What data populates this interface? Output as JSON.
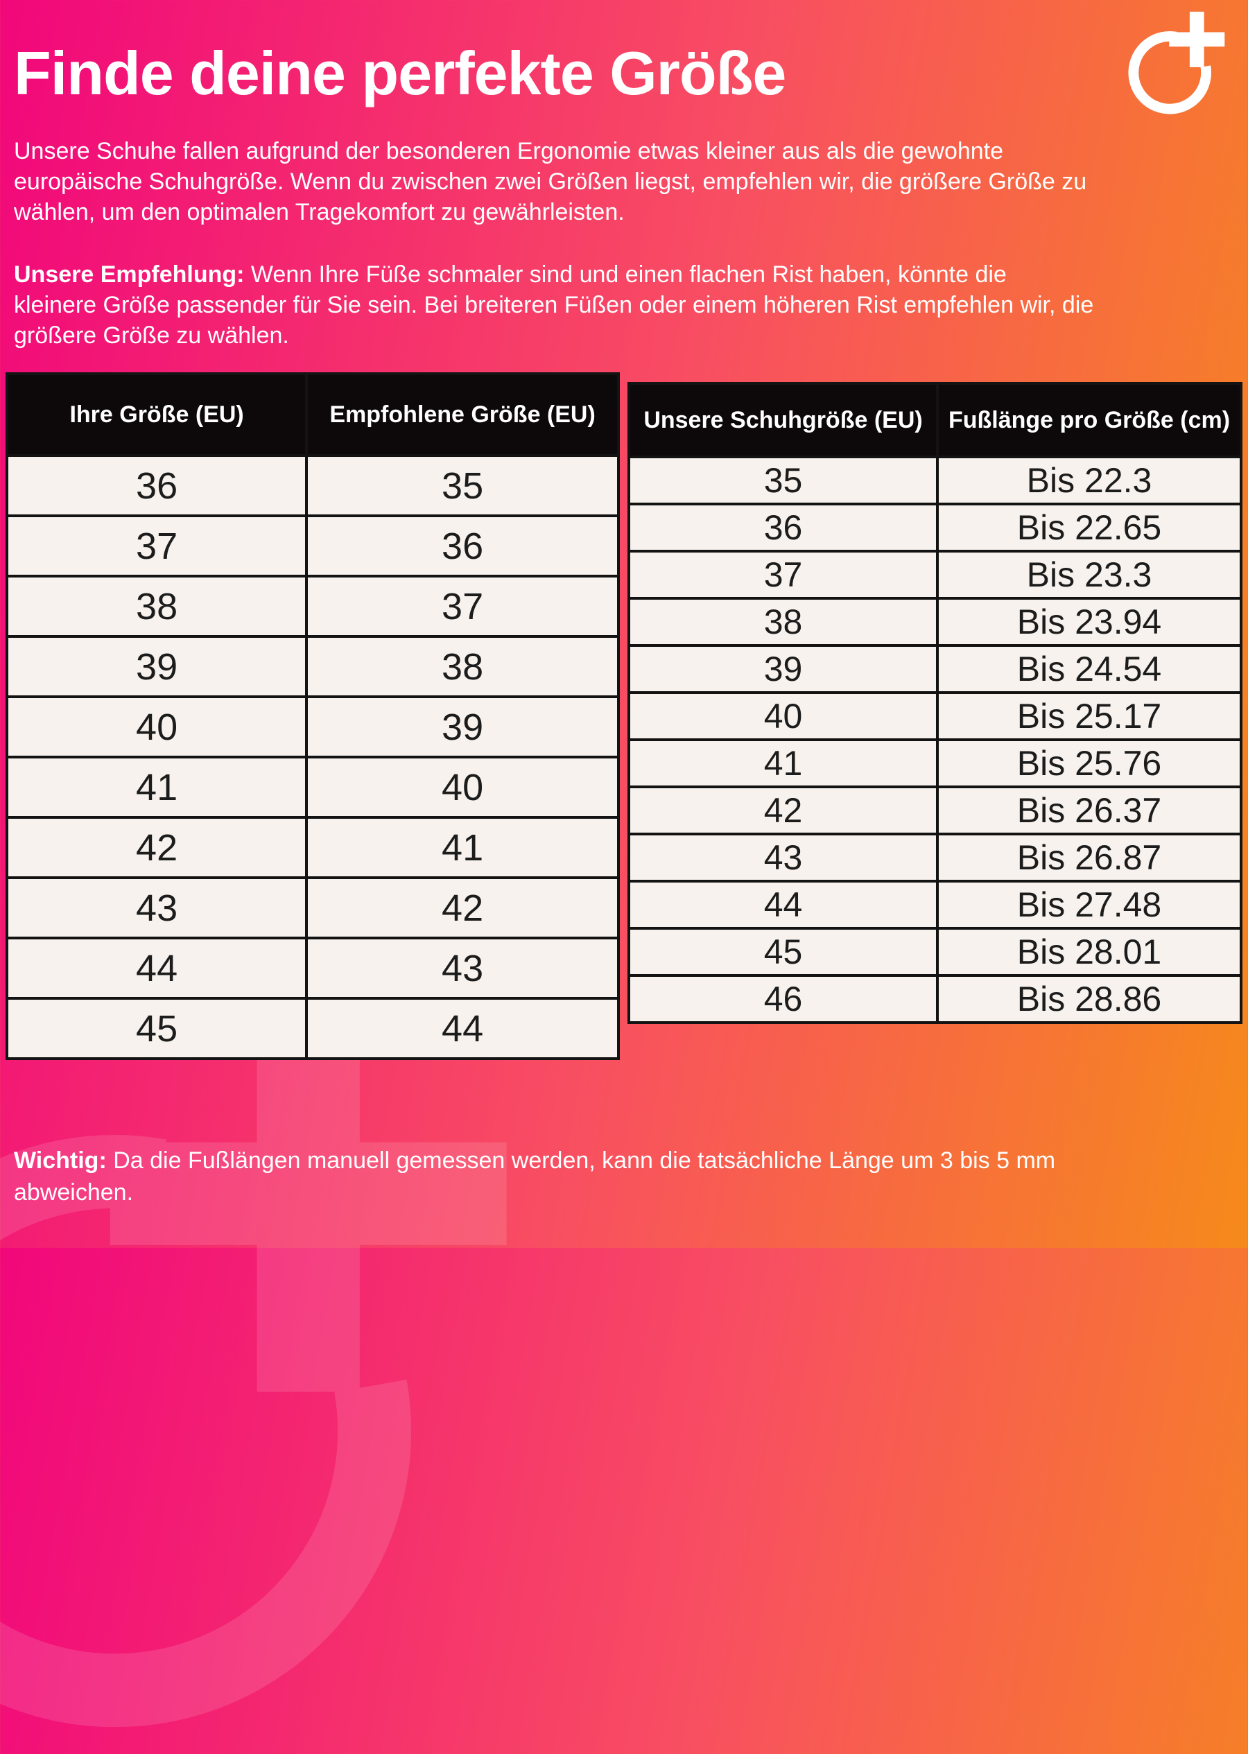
{
  "page": {
    "title": "Finde deine perfekte Größe",
    "intro": "Unsere Schuhe fallen aufgrund der besonderen Ergonomie etwas kleiner aus als die gewohnte europäische Schuhgröße. Wenn du zwischen zwei Größen liegst, empfehlen wir, die größere Größe zu wählen, um den optimalen Tragekomfort zu gewährleisten.",
    "recommendation_label": "Unsere Empfehlung:",
    "recommendation_text": " Wenn Ihre Füße schmaler sind und einen flachen Rist haben, könnte die kleinere Größe passender für Sie sein. Bei breiteren Füßen oder einem höheren Rist empfehlen wir, die größere Größe zu wählen.",
    "note_label": "Wichtig:",
    "note_text": " Da die Fußlängen manuell gemessen werden, kann die tatsächliche Länge um 3 bis 5 mm abweichen."
  },
  "logo": {
    "icon": "circle-plus-icon"
  },
  "size_table": {
    "headers": [
      "Ihre Größe (EU)",
      "Empfohlene Größe (EU)"
    ],
    "rows": [
      [
        "36",
        "35"
      ],
      [
        "37",
        "36"
      ],
      [
        "38",
        "37"
      ],
      [
        "39",
        "38"
      ],
      [
        "40",
        "39"
      ],
      [
        "41",
        "40"
      ],
      [
        "42",
        "41"
      ],
      [
        "43",
        "42"
      ],
      [
        "44",
        "43"
      ],
      [
        "45",
        "44"
      ]
    ]
  },
  "foot_length_table": {
    "headers": [
      "Unsere Schuhgröße (EU)",
      "Fußlänge pro Größe (cm)"
    ],
    "rows": [
      [
        "35",
        "Bis 22.3"
      ],
      [
        "36",
        "Bis 22.65"
      ],
      [
        "37",
        "Bis 23.3"
      ],
      [
        "38",
        "Bis 23.94"
      ],
      [
        "39",
        "Bis 24.54"
      ],
      [
        "40",
        "Bis 25.17"
      ],
      [
        "41",
        "Bis 25.76"
      ],
      [
        "42",
        "Bis 26.37"
      ],
      [
        "43",
        "Bis 26.87"
      ],
      [
        "44",
        "Bis 27.48"
      ],
      [
        "45",
        "Bis 28.01"
      ],
      [
        "46",
        "Bis 28.86"
      ]
    ]
  },
  "colors": {
    "gradient_start": "#f1077b",
    "gradient_mid": "#f84e62",
    "gradient_end": "#f68a1b",
    "table_header_bg": "#0d090b",
    "table_cell_bg": "#f7f2ed",
    "table_border": "#131313",
    "text_light": "#ffffff",
    "text_dark": "#1c1c1c"
  }
}
